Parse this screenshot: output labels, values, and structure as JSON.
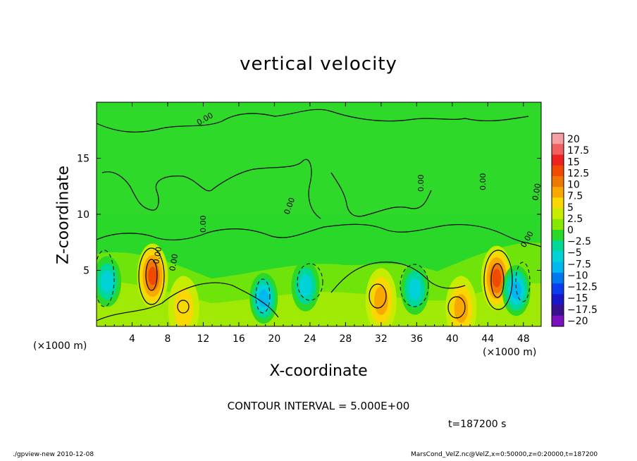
{
  "chart_data": {
    "type": "contour",
    "title": "vertical velocity",
    "xlabel": "X-coordinate",
    "ylabel": "Z-coordinate",
    "x_unit_label": "(×1000 m)",
    "xlim": [
      0,
      50
    ],
    "ylim": [
      0,
      20
    ],
    "x_ticks": [
      4,
      8,
      12,
      16,
      20,
      24,
      28,
      32,
      36,
      40,
      44,
      48
    ],
    "y_ticks": [
      5,
      10,
      15
    ],
    "contour_interval_text": "CONTOUR INTERVAL = 5.000E+00",
    "time_text": "t=187200 s",
    "contour_labels": [
      "0.00",
      "0.00",
      "0.00",
      "0.00",
      "0.00",
      "0.00",
      "0.00",
      "0.00",
      "0.00"
    ],
    "colorbar": {
      "levels": [
        "20",
        "17.5",
        "15",
        "12.5",
        "10",
        "7.5",
        "5",
        "2.5",
        "0",
        "−2.5",
        "−5",
        "−7.5",
        "−10",
        "−12.5",
        "−15",
        "−17.5",
        "−20"
      ],
      "colors": [
        "#f5a0a0",
        "#f06060",
        "#ee2020",
        "#f04a00",
        "#f07800",
        "#f8a800",
        "#f8d800",
        "#c8ec00",
        "#86e800",
        "#2ad82a",
        "#00d89a",
        "#00d2d8",
        "#00b8f0",
        "#0078f0",
        "#0a3cf0",
        "#1818c8",
        "#3a1090",
        "#7a10c0"
      ]
    },
    "features": [
      {
        "kind": "updraft",
        "x": 6.3,
        "z": 4.5,
        "peak": 12.5
      },
      {
        "kind": "updraft",
        "x": 45.0,
        "z": 4.3,
        "peak": 12.5
      },
      {
        "kind": "updraft",
        "x": 32.0,
        "z": 2.3,
        "peak": 7.5
      },
      {
        "kind": "updraft",
        "x": 41.0,
        "z": 1.6,
        "peak": 7.5
      },
      {
        "kind": "updraft",
        "x": 9.8,
        "z": 1.6,
        "peak": 5
      },
      {
        "kind": "downdraft",
        "x": 1.2,
        "z": 4.0,
        "peak": -7.5
      },
      {
        "kind": "downdraft",
        "x": 18.8,
        "z": 2.5,
        "peak": -10
      },
      {
        "kind": "downdraft",
        "x": 23.5,
        "z": 3.6,
        "peak": -7.5
      },
      {
        "kind": "downdraft",
        "x": 35.8,
        "z": 3.3,
        "peak": -7.5
      },
      {
        "kind": "downdraft",
        "x": 47.2,
        "z": 3.2,
        "peak": -10
      }
    ]
  },
  "footer": {
    "left": "./gpview-new  2010-12-08",
    "right": "MarsCond_VelZ.nc@VelZ,x=0:50000,z=0:20000,t=187200"
  }
}
